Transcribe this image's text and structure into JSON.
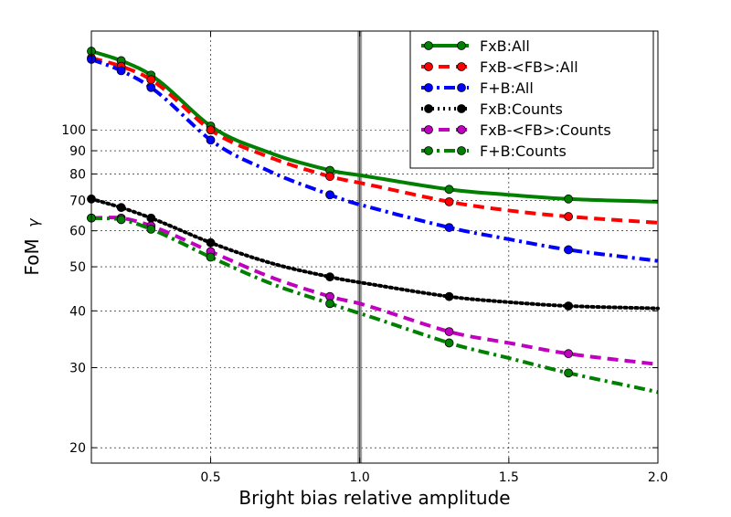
{
  "chart_data": {
    "type": "line",
    "xlabel": "Bright bias relative amplitude",
    "ylabel": "FoM",
    "ylabel_symbol": "γ",
    "xlim": [
      0.1,
      2.0
    ],
    "ylim": [
      18.5,
      165
    ],
    "yscale": "log",
    "grid": true,
    "legend_position": "top-right",
    "xticks": [
      0.5,
      1.0,
      1.5,
      2.0
    ],
    "xtick_labels": [
      "0.5",
      "1.0",
      "1.5",
      "2.0"
    ],
    "yticks": [
      20,
      30,
      40,
      50,
      60,
      70,
      80,
      90,
      100
    ],
    "ytick_labels": [
      "20",
      "30",
      "40",
      "50",
      "60",
      "70",
      "80",
      "90",
      "100"
    ],
    "vertical_line": {
      "x": 1.0,
      "color": "#808080"
    },
    "series": [
      {
        "name": "FxB:All",
        "color": "#008000",
        "dash": "solid",
        "width": 4,
        "markers_x": [
          0.1,
          0.2,
          0.3,
          0.5,
          0.9,
          1.3,
          1.7
        ],
        "curve_x": [
          0.1,
          0.2,
          0.3,
          0.5,
          0.7,
          0.9,
          1.0,
          1.3,
          1.5,
          1.7,
          2.0
        ],
        "curve_y": [
          149,
          142,
          132,
          102,
          89,
          81.5,
          79.5,
          74,
          72,
          70.5,
          69.5
        ]
      },
      {
        "name": "FxB-<FB>:All",
        "color": "#ff0000",
        "dash": "dashed",
        "width": 4,
        "markers_x": [
          0.1,
          0.2,
          0.3,
          0.5,
          0.9,
          1.3,
          1.7
        ],
        "curve_x": [
          0.1,
          0.2,
          0.3,
          0.5,
          0.7,
          0.9,
          1.0,
          1.3,
          1.5,
          1.7,
          2.0
        ],
        "curve_y": [
          144,
          138,
          129,
          100,
          87,
          79,
          76.5,
          69.5,
          66.5,
          64.5,
          62.5
        ]
      },
      {
        "name": "F+B:All",
        "color": "#0000ff",
        "dash": "dashdot",
        "width": 4,
        "markers_x": [
          0.1,
          0.2,
          0.3,
          0.5,
          0.9,
          1.3,
          1.7
        ],
        "curve_x": [
          0.1,
          0.2,
          0.3,
          0.5,
          0.7,
          0.9,
          1.0,
          1.3,
          1.5,
          1.7,
          2.0
        ],
        "curve_y": [
          143,
          135,
          124,
          95,
          81,
          72,
          68.5,
          61,
          57.5,
          54.5,
          51.5
        ]
      },
      {
        "name": "FxB:Counts",
        "color": "#000000",
        "dash": "dotted",
        "width": 4,
        "markers_x": [
          0.1,
          0.2,
          0.3,
          0.5,
          0.9,
          1.3,
          1.7
        ],
        "curve_x": [
          0.1,
          0.2,
          0.3,
          0.5,
          0.7,
          0.9,
          1.0,
          1.3,
          1.5,
          1.7,
          2.0
        ],
        "curve_y": [
          70.5,
          67.5,
          64,
          56.5,
          51,
          47.5,
          46.2,
          43,
          41.8,
          41,
          40.5
        ]
      },
      {
        "name": "FxB-<FB>:Counts",
        "color": "#bf00bf",
        "dash": "dashed",
        "width": 4,
        "markers_x": [
          0.1,
          0.2,
          0.3,
          0.5,
          0.9,
          1.3,
          1.7
        ],
        "curve_x": [
          0.1,
          0.2,
          0.3,
          0.5,
          0.7,
          0.9,
          1.0,
          1.3,
          1.5,
          1.7,
          2.0
        ],
        "curve_y": [
          64,
          64,
          61.5,
          54,
          47.5,
          43,
          41.5,
          36,
          34,
          32.2,
          30.5
        ]
      },
      {
        "name": "F+B:Counts",
        "color": "#008000",
        "dash": "dashdot",
        "width": 4,
        "markers_x": [
          0.1,
          0.2,
          0.3,
          0.5,
          0.9,
          1.3,
          1.7
        ],
        "curve_x": [
          0.1,
          0.2,
          0.3,
          0.5,
          0.7,
          0.9,
          1.0,
          1.3,
          1.5,
          1.7,
          2.0
        ],
        "curve_y": [
          64,
          63.5,
          60.5,
          52.5,
          46,
          41.5,
          39.5,
          34,
          31.5,
          29.2,
          26.5
        ]
      }
    ]
  }
}
